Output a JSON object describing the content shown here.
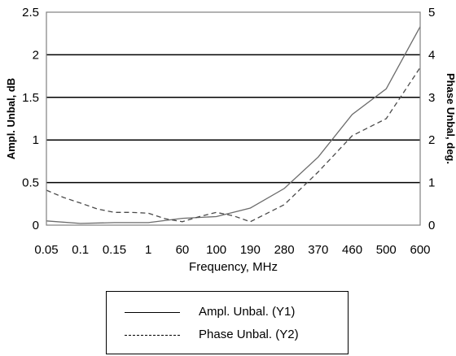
{
  "chart_data": {
    "type": "line",
    "xlabel": "Frequency, MHz",
    "ylabel": "Ampl. Unbal, dB",
    "ylabel_right": "Phase Unbal, deg.",
    "categories": [
      "0.05",
      "0.1",
      "0.15",
      "1",
      "60",
      "100",
      "190",
      "280",
      "370",
      "460",
      "500",
      "600"
    ],
    "y1_ticks": [
      "0",
      "0.5",
      "1",
      "1.5",
      "2",
      "2.5"
    ],
    "y2_ticks": [
      "0",
      "1",
      "2",
      "3",
      "4",
      "5"
    ],
    "ylim": [
      0,
      2.5
    ],
    "ylim_right": [
      0,
      5
    ],
    "grid": true,
    "legend_position": "bottom",
    "series": [
      {
        "name": "Ampl. Unbal. (Y1)",
        "axis": "left",
        "style": "solid",
        "x": [
          0,
          1,
          2,
          3,
          4,
          5,
          6,
          7,
          8,
          9,
          10,
          11
        ],
        "values": [
          0.05,
          0.02,
          0.03,
          0.03,
          0.08,
          0.1,
          0.2,
          0.43,
          0.8,
          1.3,
          1.6,
          2.33
        ]
      },
      {
        "name": "Phase Unbal. (Y2)",
        "axis": "right",
        "style": "dashed",
        "x": [
          0,
          0.5,
          1,
          1.5,
          2,
          2.5,
          3,
          3.5,
          4,
          4.5,
          5,
          5.5,
          6,
          7,
          8,
          9,
          10,
          11
        ],
        "values": [
          0.82,
          0.65,
          0.52,
          0.38,
          0.3,
          0.3,
          0.28,
          0.15,
          0.08,
          0.2,
          0.3,
          0.22,
          0.08,
          0.48,
          1.25,
          2.1,
          2.5,
          3.7
        ]
      }
    ]
  },
  "legend": {
    "items": [
      {
        "label": "Ampl. Unbal. (Y1)",
        "style": "solid"
      },
      {
        "label": "Phase Unbal. (Y2)",
        "style": "dashed"
      }
    ]
  },
  "colors": {
    "series1": "#6b6b6b",
    "series2": "#4a4a4a",
    "grid": "#000000",
    "frame": "#808080"
  }
}
